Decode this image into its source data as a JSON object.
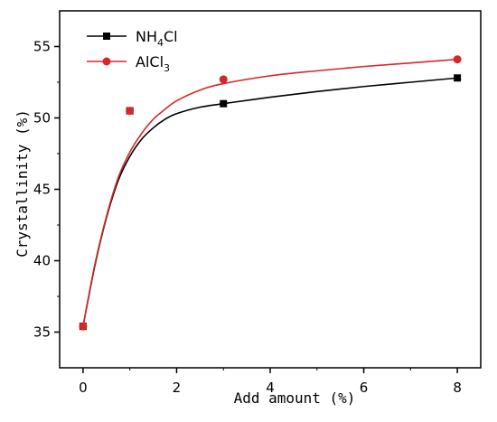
{
  "chart_data": {
    "type": "scatter",
    "xlabel": "Add amount (%)",
    "ylabel": "Crystallinity (%)",
    "xlim": [
      -0.5,
      8.5
    ],
    "ylim": [
      32.5,
      57.5
    ],
    "xticks": [
      0,
      2,
      4,
      6,
      8
    ],
    "yticks": [
      35,
      40,
      45,
      50,
      55
    ],
    "grid": false,
    "legend_position": "top-left",
    "series": [
      {
        "name": "NH4Cl",
        "legend_main": "NH",
        "legend_sub": "4",
        "legend_tail": "Cl",
        "color": "#000000",
        "marker": "square",
        "x": [
          0,
          1,
          3,
          8
        ],
        "y": [
          35.4,
          50.5,
          51.0,
          52.8
        ],
        "fit_curve": [
          [
            0,
            35.4
          ],
          [
            0.25,
            39.6
          ],
          [
            0.5,
            43.0
          ],
          [
            0.75,
            45.6
          ],
          [
            1.0,
            47.3
          ],
          [
            1.25,
            48.5
          ],
          [
            1.5,
            49.3
          ],
          [
            1.75,
            49.9
          ],
          [
            2.0,
            50.3
          ],
          [
            2.5,
            50.75
          ],
          [
            3.0,
            51.0
          ],
          [
            4.0,
            51.45
          ],
          [
            5.0,
            51.85
          ],
          [
            6.0,
            52.2
          ],
          [
            7.0,
            52.5
          ],
          [
            8.0,
            52.8
          ]
        ]
      },
      {
        "name": "AlCl3",
        "legend_main": "AlCl",
        "legend_sub": "3",
        "legend_tail": "",
        "color": "#d62728",
        "marker": "circle",
        "x": [
          0,
          1,
          3,
          8
        ],
        "y": [
          35.4,
          50.5,
          52.7,
          54.1
        ],
        "fit_curve": [
          [
            0,
            35.4
          ],
          [
            0.25,
            39.7
          ],
          [
            0.5,
            43.1
          ],
          [
            0.75,
            45.8
          ],
          [
            1.0,
            47.6
          ],
          [
            1.25,
            48.9
          ],
          [
            1.5,
            49.9
          ],
          [
            1.75,
            50.6
          ],
          [
            2.0,
            51.2
          ],
          [
            2.5,
            51.95
          ],
          [
            3.0,
            52.4
          ],
          [
            4.0,
            52.95
          ],
          [
            5.0,
            53.3
          ],
          [
            6.0,
            53.6
          ],
          [
            7.0,
            53.85
          ],
          [
            8.0,
            54.1
          ]
        ]
      }
    ]
  }
}
